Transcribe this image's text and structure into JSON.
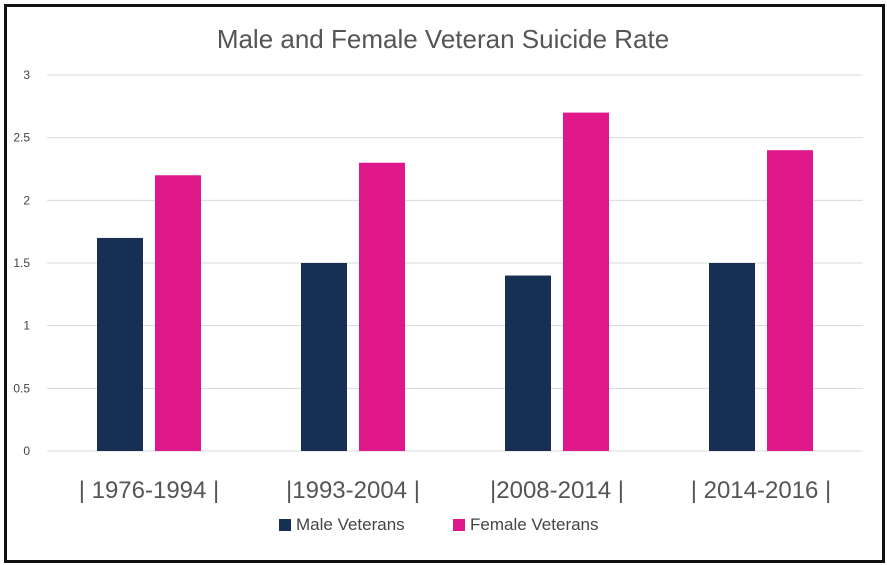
{
  "chart_data": {
    "type": "bar",
    "title": "Male and Female Veteran Suicide Rate",
    "categories": [
      "| 1976-1994 |",
      "|1993-2004 |",
      "|2008-2014 |",
      "| 2014-2016 |"
    ],
    "series": [
      {
        "name": "Male Veterans",
        "color": "#162f52",
        "values": [
          1.7,
          1.5,
          1.4,
          1.5
        ]
      },
      {
        "name": "Female Veterans",
        "color": "#e0198a",
        "values": [
          2.2,
          2.3,
          2.7,
          2.4
        ]
      }
    ],
    "y_ticks": [
      "0",
      "0.5",
      "1",
      "1.5",
      "2",
      "2.5",
      "3"
    ],
    "ylim": [
      0,
      3
    ],
    "xlabel": "",
    "ylabel": "",
    "grid": true,
    "legend": "bottom"
  }
}
